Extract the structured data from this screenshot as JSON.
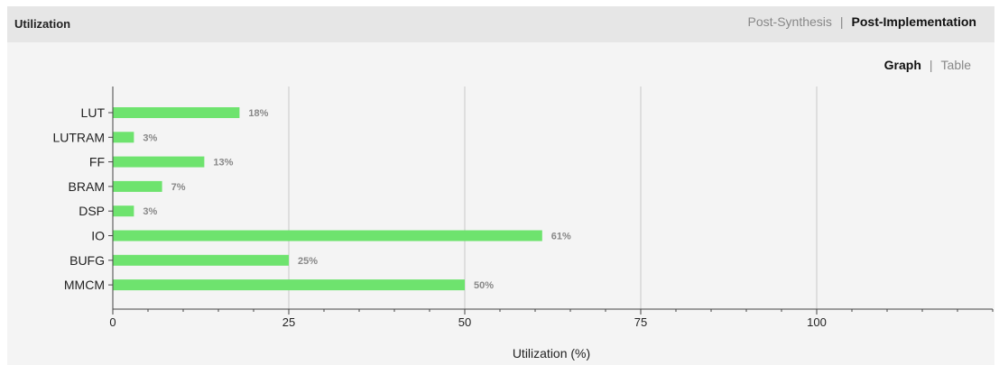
{
  "panel": {
    "title": "Utilization",
    "tabs": [
      {
        "label": "Post-Synthesis",
        "active": false
      },
      {
        "label": "Post-Implementation",
        "active": true
      }
    ],
    "view_toggle": [
      {
        "label": "Graph",
        "active": true
      },
      {
        "label": "Table",
        "active": false
      }
    ],
    "separator": "|"
  },
  "colors": {
    "bar": "#6ee36e",
    "grid": "#c8c8c8",
    "axis": "#444444"
  },
  "chart_data": {
    "type": "bar",
    "orientation": "horizontal",
    "categories": [
      "LUT",
      "LUTRAM",
      "FF",
      "BRAM",
      "DSP",
      "IO",
      "BUFG",
      "MMCM"
    ],
    "values": [
      18,
      3,
      13,
      7,
      3,
      61,
      25,
      50
    ],
    "value_labels": [
      "18%",
      "3%",
      "13%",
      "7%",
      "3%",
      "61%",
      "25%",
      "50%"
    ],
    "xlabel": "Utilization (%)",
    "xlim": [
      0,
      125
    ],
    "xticks": [
      0,
      25,
      50,
      75,
      100
    ],
    "grid": true,
    "legend": "none"
  }
}
